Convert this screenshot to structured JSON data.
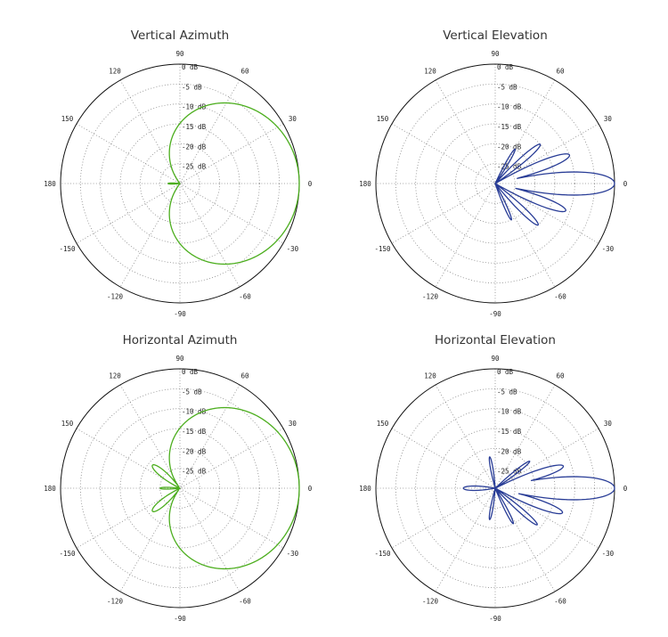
{
  "chart_data": [
    {
      "type": "polar",
      "title": "Vertical Azimuth",
      "color": "#4cae1e",
      "radial_axis": {
        "unit": "dB",
        "min": -30,
        "max": 0,
        "ticks": [
          0,
          -5,
          -10,
          -15,
          -20,
          -25
        ]
      },
      "angle_ticks": [
        0,
        30,
        60,
        90,
        120,
        150,
        180,
        -150,
        -120,
        -90,
        -60,
        -30
      ],
      "grid": true,
      "lobes": [
        {
          "angle": 0,
          "gain": 0,
          "width": 115
        },
        {
          "angle": 95,
          "gain": -21,
          "width": 26
        },
        {
          "angle": -95,
          "gain": -21,
          "width": 26
        },
        {
          "angle": 180,
          "gain": -27,
          "width": 20
        }
      ]
    },
    {
      "type": "polar",
      "title": "Vertical Elevation",
      "color": "#283c96",
      "radial_axis": {
        "unit": "dB",
        "min": -30,
        "max": 0,
        "ticks": [
          0,
          -5,
          -10,
          -15,
          -20,
          -25
        ]
      },
      "angle_ticks": [
        0,
        30,
        60,
        90,
        120,
        150,
        180,
        -150,
        -120,
        -90,
        -60,
        -30
      ],
      "grid": true,
      "lobes": [
        {
          "angle": 0,
          "gain": 0,
          "width": 13
        },
        {
          "angle": 21,
          "gain": -10,
          "width": 10
        },
        {
          "angle": 41,
          "gain": -15,
          "width": 9
        },
        {
          "angle": 60,
          "gain": -20,
          "width": 8
        },
        {
          "angle": -21,
          "gain": -11,
          "width": 10
        },
        {
          "angle": -44,
          "gain": -15,
          "width": 9
        },
        {
          "angle": -66,
          "gain": -20,
          "width": 8
        }
      ]
    },
    {
      "type": "polar",
      "title": "Horizontal Azimuth",
      "color": "#4cae1e",
      "radial_axis": {
        "unit": "dB",
        "min": -30,
        "max": 0,
        "ticks": [
          0,
          -5,
          -10,
          -15,
          -20,
          -25
        ]
      },
      "angle_ticks": [
        0,
        30,
        60,
        90,
        120,
        150,
        180,
        -150,
        -120,
        -90,
        -60,
        -30
      ],
      "grid": true,
      "lobes": [
        {
          "angle": 0,
          "gain": 0,
          "width": 115
        },
        {
          "angle": 140,
          "gain": -21,
          "width": 22
        },
        {
          "angle": -140,
          "gain": -21,
          "width": 22
        },
        {
          "angle": 180,
          "gain": -25,
          "width": 15
        }
      ]
    },
    {
      "type": "polar",
      "title": "Horizontal Elevation",
      "color": "#283c96",
      "radial_axis": {
        "unit": "dB",
        "min": -30,
        "max": 0,
        "ticks": [
          0,
          -5,
          -10,
          -15,
          -20,
          -25
        ]
      },
      "angle_ticks": [
        0,
        30,
        60,
        90,
        120,
        150,
        180,
        -150,
        -120,
        -90,
        -60,
        -30
      ],
      "grid": true,
      "lobes": [
        {
          "angle": 0,
          "gain": 0,
          "width": 13
        },
        {
          "angle": 18,
          "gain": -12,
          "width": 10
        },
        {
          "angle": 38,
          "gain": -19,
          "width": 8
        },
        {
          "angle": -20,
          "gain": -12,
          "width": 10
        },
        {
          "angle": -41,
          "gain": -16,
          "width": 8
        },
        {
          "angle": -63,
          "gain": -20,
          "width": 8
        },
        {
          "angle": 180,
          "gain": -22,
          "width": 18
        },
        {
          "angle": 100,
          "gain": -22,
          "width": 10
        },
        {
          "angle": -100,
          "gain": -22,
          "width": 10
        }
      ]
    }
  ]
}
